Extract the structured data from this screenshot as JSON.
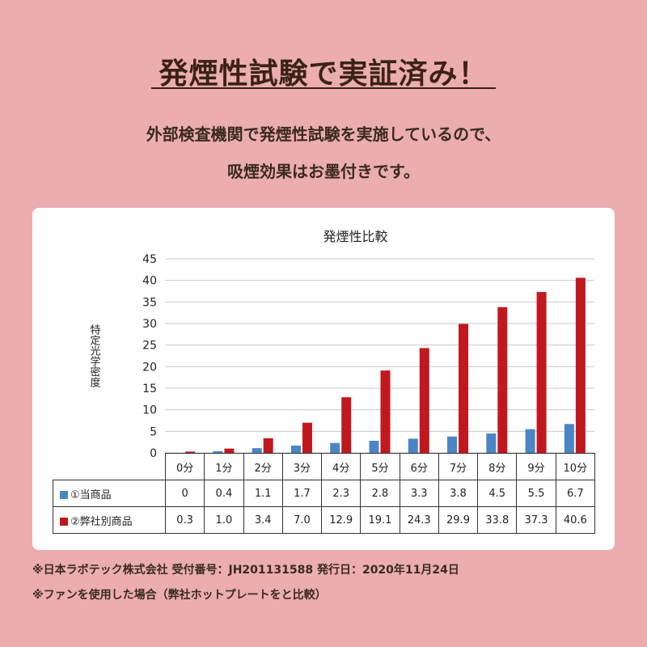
{
  "page": {
    "heading": "発煙性試験で実証済み！",
    "lead_line1": "外部検査機関で発煙性試験を実施しているので、",
    "lead_line2": "吸煙効果はお墨付きです。",
    "note1": "※日本ラボテック株式会社 受付番号：JH201131588 発行日：2020年11月24日",
    "note2": "※ファンを使用した場合（弊社ホットプレートをと比較）"
  },
  "chart_data": {
    "type": "bar",
    "title": "発煙性比較",
    "xlabel": "",
    "ylabel": "特定光学密度",
    "ylim": [
      0,
      45
    ],
    "yticks": [
      0,
      5,
      10,
      15,
      20,
      25,
      30,
      35,
      40,
      45
    ],
    "grid": true,
    "legend": "table-left",
    "categories": [
      "0分",
      "1分",
      "2分",
      "3分",
      "4分",
      "5分",
      "6分",
      "7分",
      "8分",
      "9分",
      "10分"
    ],
    "series": [
      {
        "name": "①当商品",
        "color": "#4a86c5",
        "values": [
          0,
          0.4,
          1.1,
          1.7,
          2.3,
          2.8,
          3.3,
          3.8,
          4.5,
          5.5,
          6.7
        ],
        "labels": [
          "0",
          "0.4",
          "1.1",
          "1.7",
          "2.3",
          "2.8",
          "3.3",
          "3.8",
          "4.5",
          "5.5",
          "6.7"
        ]
      },
      {
        "name": "②弊社別商品",
        "color": "#c0181e",
        "values": [
          0.3,
          1.0,
          3.4,
          7.0,
          12.9,
          19.1,
          24.3,
          29.9,
          33.8,
          37.3,
          40.6
        ],
        "labels": [
          "0.3",
          "1.0",
          "3.4",
          "7.0",
          "12.9",
          "19.1",
          "24.3",
          "29.9",
          "33.8",
          "37.3",
          "40.6"
        ]
      }
    ]
  }
}
